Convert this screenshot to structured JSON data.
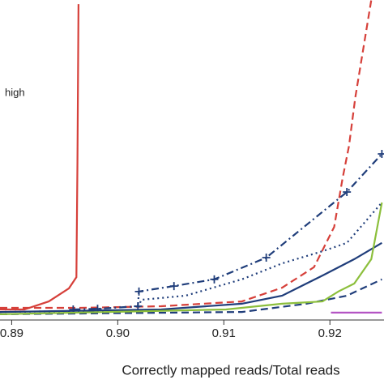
{
  "chart_data": {
    "type": "line",
    "x_label": "Correctly mapped reads/Total reads",
    "annotation": "high",
    "xlim": [
      0.8889,
      0.9251
    ],
    "ylim": [
      0,
      100
    ],
    "xticks": [
      {
        "value": 0.89,
        "label": "0.89"
      },
      {
        "value": 0.9,
        "label": "0.90"
      },
      {
        "value": 0.91,
        "label": "0.91"
      },
      {
        "value": 0.92,
        "label": "0.92"
      }
    ],
    "grid": false,
    "series": [
      {
        "color": "#d6403a",
        "dash": "solid",
        "x": [
          0.8889,
          0.8912,
          0.8935,
          0.8954,
          0.8961,
          0.8962,
          0.8963
        ],
        "values": [
          3.3,
          3.3,
          5.8,
          9.9,
          13.4,
          49.4,
          98.7
        ]
      },
      {
        "color": "#d6403a",
        "dash": "dashed",
        "x": [
          0.8889,
          0.8965,
          0.9041,
          0.9117,
          0.9155,
          0.9185,
          0.9204,
          0.9212,
          0.9218,
          0.9224,
          0.9239
        ],
        "values": [
          3.8,
          3.8,
          4.3,
          5.8,
          10.1,
          16.5,
          29.1,
          44.3,
          54.4,
          69.6,
          100
        ]
      },
      {
        "color": "#1f3d7a",
        "dash": "dashdot",
        "markers": true,
        "x": [
          0.8958,
          0.8981,
          0.9019,
          0.902,
          0.9053,
          0.9091,
          0.914,
          0.9216,
          0.9249
        ],
        "values": [
          3.3,
          3.5,
          4.3,
          8.9,
          10.6,
          12.7,
          19.5,
          40.0,
          51.9
        ]
      },
      {
        "color": "#1f3d7a",
        "dash": "dotted",
        "x": [
          0.8889,
          0.9019,
          0.9022,
          0.9064,
          0.9117,
          0.9155,
          0.9193,
          0.9216,
          0.9249
        ],
        "values": [
          2.5,
          3.0,
          6.3,
          7.6,
          12.7,
          17.7,
          21.5,
          24.1,
          36.7
        ]
      },
      {
        "color": "#1f3d7a",
        "dash": "solid",
        "x": [
          0.8889,
          0.9041,
          0.9117,
          0.9155,
          0.9193,
          0.9223,
          0.9249
        ],
        "values": [
          2.5,
          3.3,
          5.1,
          7.6,
          13.9,
          19.0,
          24.1
        ]
      },
      {
        "color": "#1f3d7a",
        "dash": "dashed",
        "x": [
          0.8889,
          0.9117,
          0.9178,
          0.9216,
          0.9249
        ],
        "values": [
          1.8,
          2.5,
          5.1,
          7.6,
          12.7
        ]
      },
      {
        "color": "#8cbf3c",
        "dash": "solid",
        "x": [
          0.8889,
          0.9102,
          0.9155,
          0.9193,
          0.9208,
          0.9223,
          0.9239,
          0.9249
        ],
        "values": [
          1.8,
          3.3,
          5.1,
          5.8,
          8.9,
          11.4,
          19.0,
          36.7
        ]
      },
      {
        "color": "#b455c4",
        "dash": "solid",
        "x": [
          0.9201,
          0.9249
        ],
        "values": [
          2.3,
          2.3
        ]
      }
    ]
  }
}
